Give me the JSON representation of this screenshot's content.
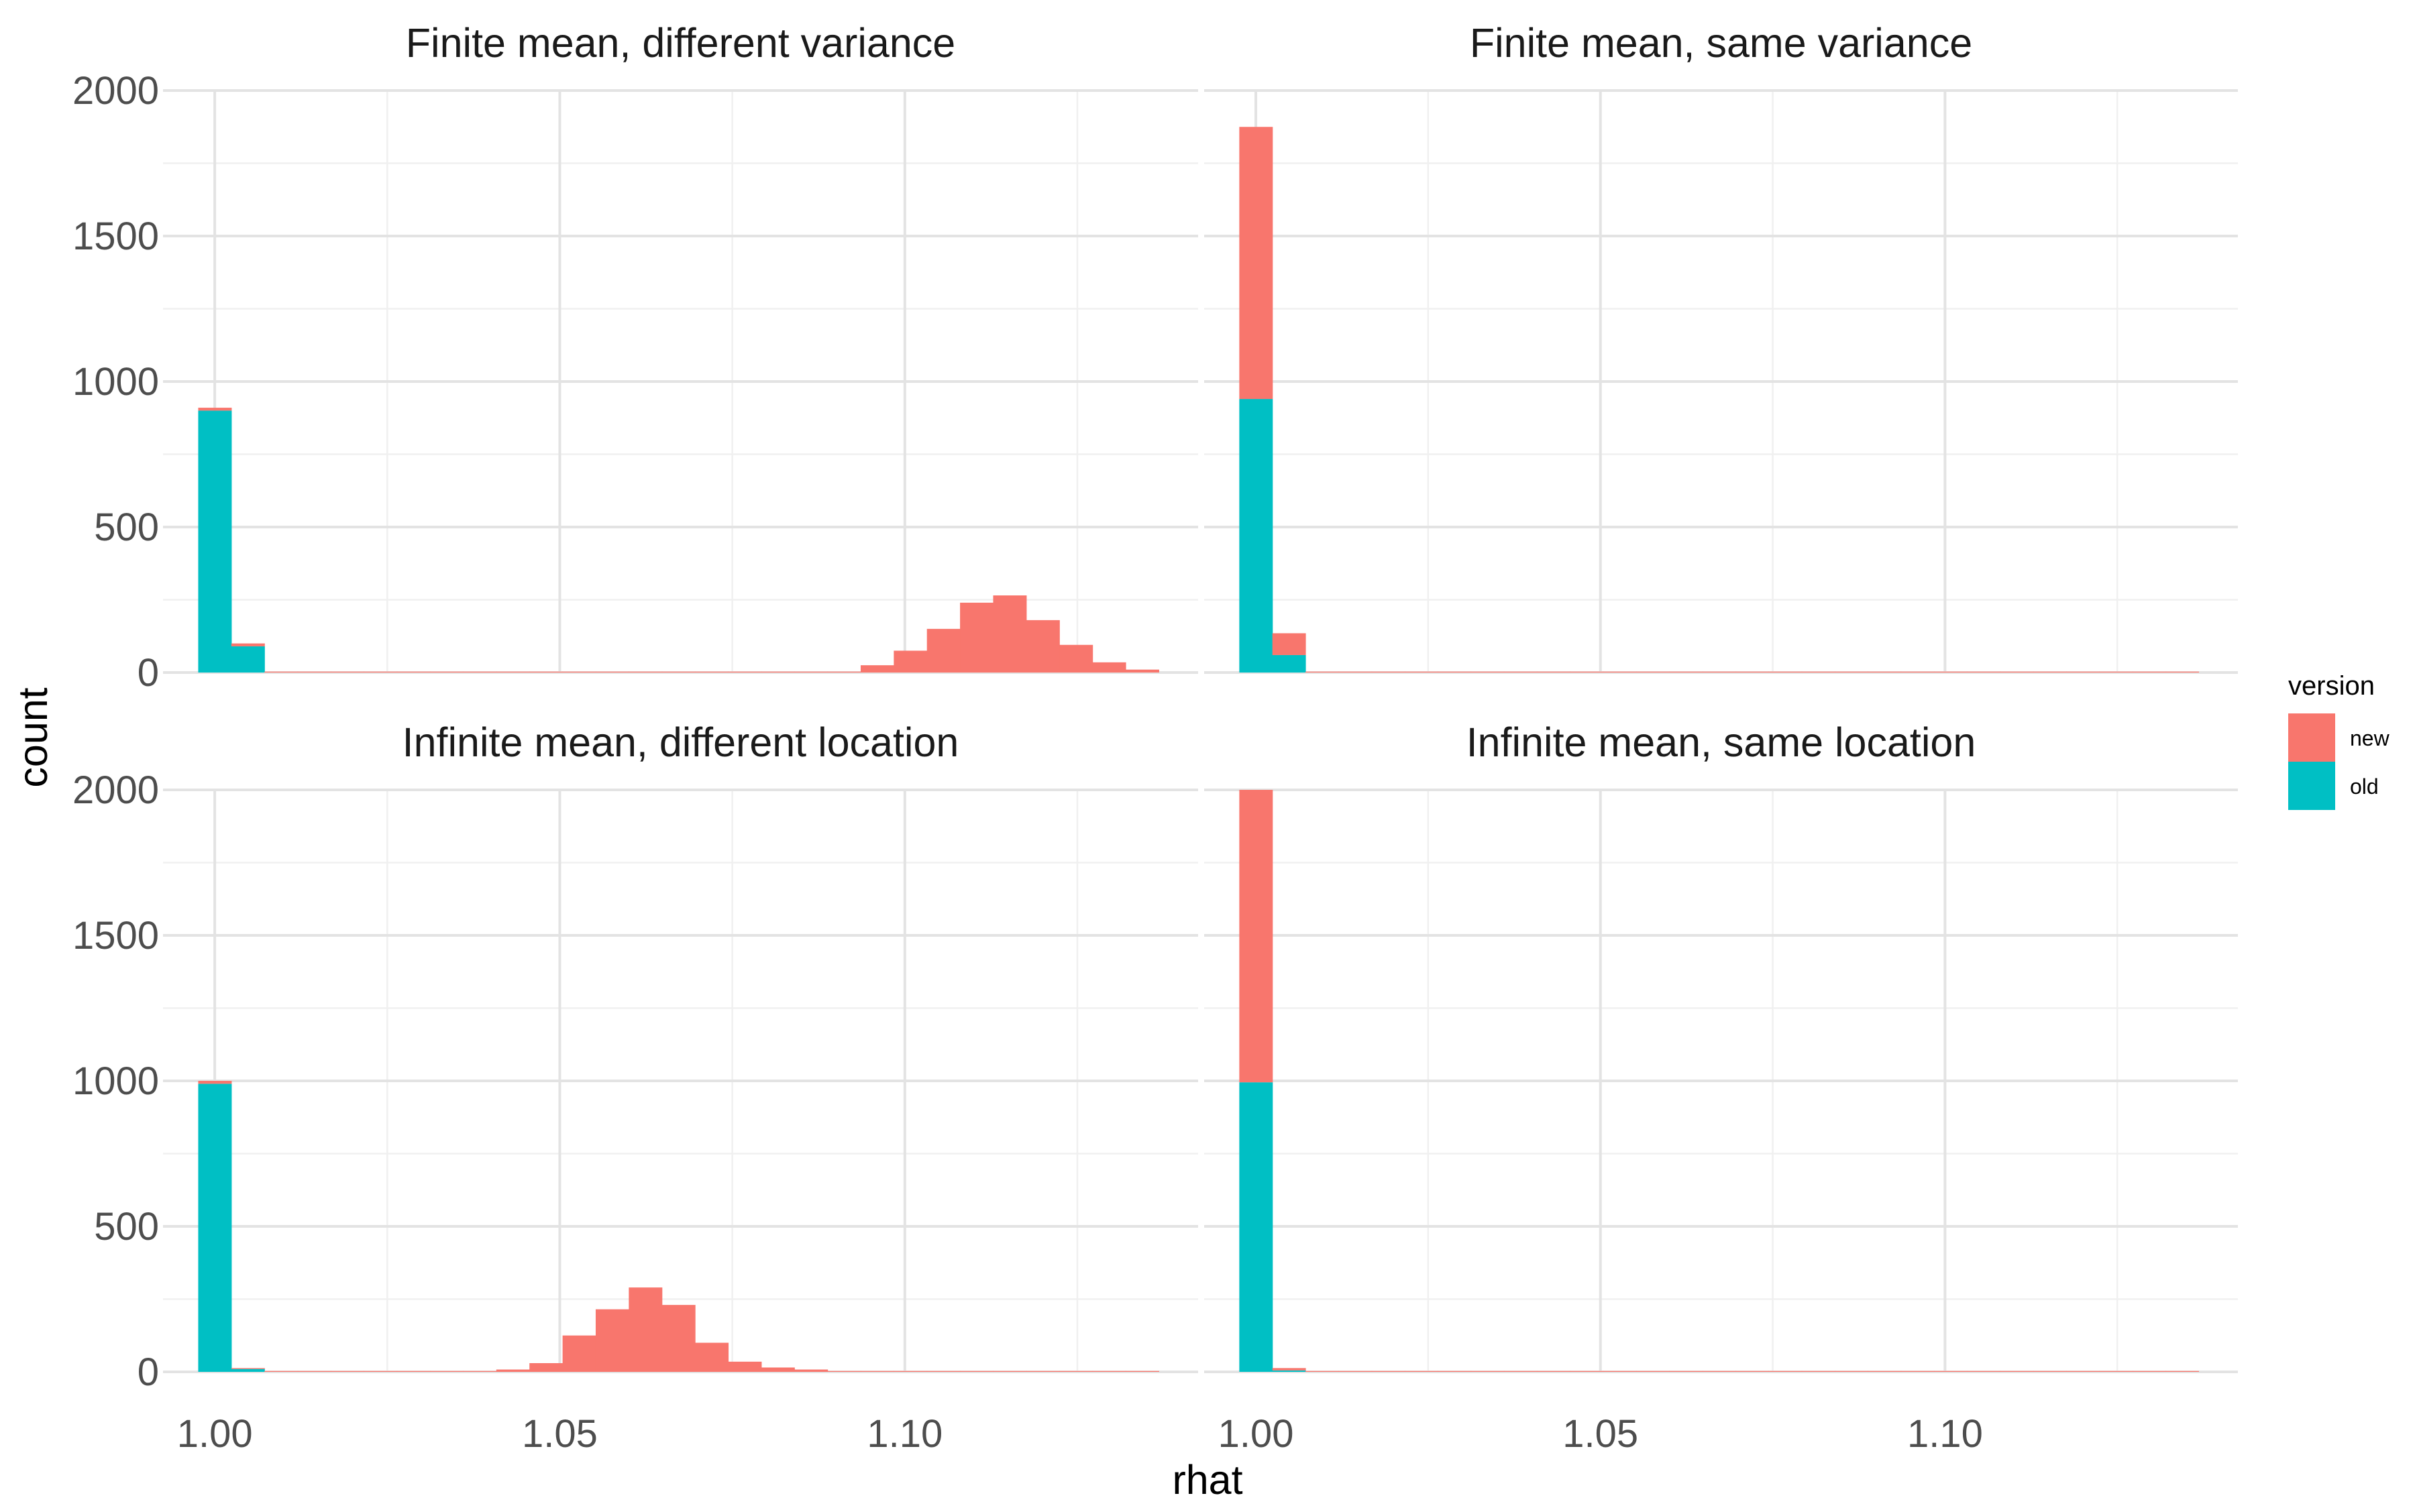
{
  "chart_data": {
    "type": "histogram",
    "stacked": true,
    "facet_layout": "2x2",
    "xlabel": "rhat",
    "ylabel": "count",
    "x_ticks": [
      "1.00",
      "1.05",
      "1.10"
    ],
    "x_tick_values": [
      1.0,
      1.05,
      1.1
    ],
    "xlim": [
      0.9925,
      1.1425
    ],
    "y_ticks": [
      "0",
      "500",
      "1000",
      "1500",
      "2000"
    ],
    "y_tick_values": [
      0,
      500,
      1000,
      1500,
      2000
    ],
    "ylim": [
      0,
      2000
    ],
    "grid": true,
    "legend": {
      "title": "version",
      "position": "right",
      "items": [
        {
          "name": "new",
          "color": "#F8766D"
        },
        {
          "name": "old",
          "color": "#00BFC4"
        }
      ]
    },
    "bin_width": 0.0048,
    "bin_start": 0.9976,
    "facets": [
      {
        "title": "Finite mean, different variance",
        "series": [
          {
            "name": "old",
            "counts": [
              900,
              90,
              0,
              0,
              0,
              0,
              0,
              0,
              0,
              0,
              0,
              0,
              0,
              0,
              0,
              0,
              0,
              0,
              0,
              0,
              0,
              0,
              0,
              0,
              0,
              0,
              0,
              0,
              0
            ]
          },
          {
            "name": "new",
            "counts": [
              10,
              10,
              3,
              3,
              3,
              3,
              3,
              3,
              3,
              3,
              3,
              3,
              3,
              3,
              3,
              3,
              3,
              3,
              3,
              3,
              25,
              75,
              150,
              240,
              265,
              180,
              95,
              35,
              10
            ]
          }
        ]
      },
      {
        "title": "Finite mean, same variance",
        "series": [
          {
            "name": "old",
            "counts": [
              940,
              60,
              0,
              0,
              0,
              0,
              0,
              0,
              0,
              0,
              0,
              0,
              0,
              0,
              0,
              0,
              0,
              0,
              0,
              0,
              0,
              0,
              0,
              0,
              0,
              0,
              0,
              0,
              0
            ]
          },
          {
            "name": "new",
            "counts": [
              935,
              75,
              3,
              3,
              3,
              3,
              3,
              3,
              3,
              3,
              3,
              3,
              3,
              3,
              3,
              3,
              3,
              3,
              3,
              3,
              3,
              3,
              3,
              3,
              3,
              3,
              3,
              3,
              3
            ]
          }
        ]
      },
      {
        "title": "Infinite mean, different location",
        "series": [
          {
            "name": "old",
            "counts": [
              990,
              10,
              0,
              0,
              0,
              0,
              0,
              0,
              0,
              0,
              0,
              0,
              0,
              0,
              0,
              0,
              0,
              0,
              0,
              0,
              0,
              0,
              0,
              0,
              0,
              0,
              0,
              0,
              0
            ]
          },
          {
            "name": "new",
            "counts": [
              10,
              3,
              3,
              3,
              3,
              3,
              3,
              3,
              3,
              8,
              30,
              125,
              215,
              290,
              230,
              100,
              35,
              15,
              8,
              3,
              3,
              3,
              3,
              3,
              3,
              3,
              3,
              3,
              3
            ]
          }
        ]
      },
      {
        "title": "Infinite mean, same location",
        "series": [
          {
            "name": "old",
            "counts": [
              995,
              5,
              0,
              0,
              0,
              0,
              0,
              0,
              0,
              0,
              0,
              0,
              0,
              0,
              0,
              0,
              0,
              0,
              0,
              0,
              0,
              0,
              0,
              0,
              0,
              0,
              0,
              0,
              0
            ]
          },
          {
            "name": "new",
            "counts": [
              1005,
              8,
              3,
              3,
              3,
              3,
              3,
              3,
              3,
              3,
              3,
              3,
              3,
              3,
              3,
              3,
              3,
              3,
              3,
              3,
              3,
              3,
              3,
              3,
              3,
              3,
              3,
              3,
              3
            ]
          }
        ]
      }
    ]
  }
}
